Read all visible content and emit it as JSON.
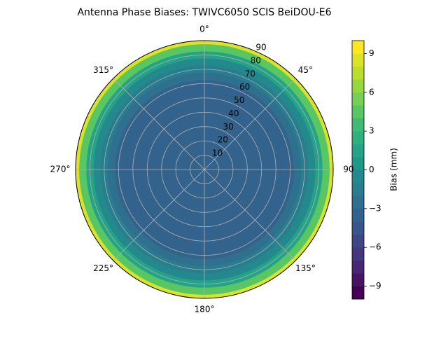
{
  "chart_data": {
    "type": "polar_contour",
    "title": "Antenna Phase Biases: TWIVC6050        SCIS BeiDOU-E6",
    "radii": [
      0,
      5,
      10,
      15,
      20,
      25,
      30,
      35,
      40,
      45,
      50,
      55,
      60,
      65,
      70,
      75,
      80,
      85,
      90
    ],
    "values": [
      -4,
      -4,
      -4,
      -4,
      -4,
      -4,
      -4,
      -4,
      -4,
      -4,
      -4,
      -3.8,
      -3.5,
      -3,
      -2,
      -0.5,
      1.5,
      4.5,
      8.5
    ],
    "rlim": [
      0,
      90
    ],
    "rticks": [
      10,
      20,
      30,
      40,
      50,
      60,
      70,
      80,
      90
    ],
    "thetaticks": [
      {
        "value": 0,
        "label": "0°"
      },
      {
        "value": 45,
        "label": "45°"
      },
      {
        "value": 90,
        "label": "90"
      },
      {
        "value": 135,
        "label": "135°"
      },
      {
        "value": 180,
        "label": "180°"
      },
      {
        "value": 225,
        "label": "225°"
      },
      {
        "value": 270,
        "label": "270°"
      },
      {
        "value": 315,
        "label": "315°"
      }
    ],
    "levels": [
      -10,
      -9,
      -8,
      -7,
      -6,
      -5,
      -4,
      -3,
      -2,
      -1,
      0,
      1,
      2,
      3,
      4,
      5,
      6,
      7,
      8,
      9,
      10
    ],
    "clim": [
      -10,
      10
    ],
    "cticks": [
      {
        "value": -9,
        "label": "−9"
      },
      {
        "value": -6,
        "label": "−6"
      },
      {
        "value": -3,
        "label": "−3"
      },
      0,
      3,
      6,
      9
    ],
    "colorbar_label": "Bias (mm)",
    "colormap": "viridis",
    "grid": true
  }
}
